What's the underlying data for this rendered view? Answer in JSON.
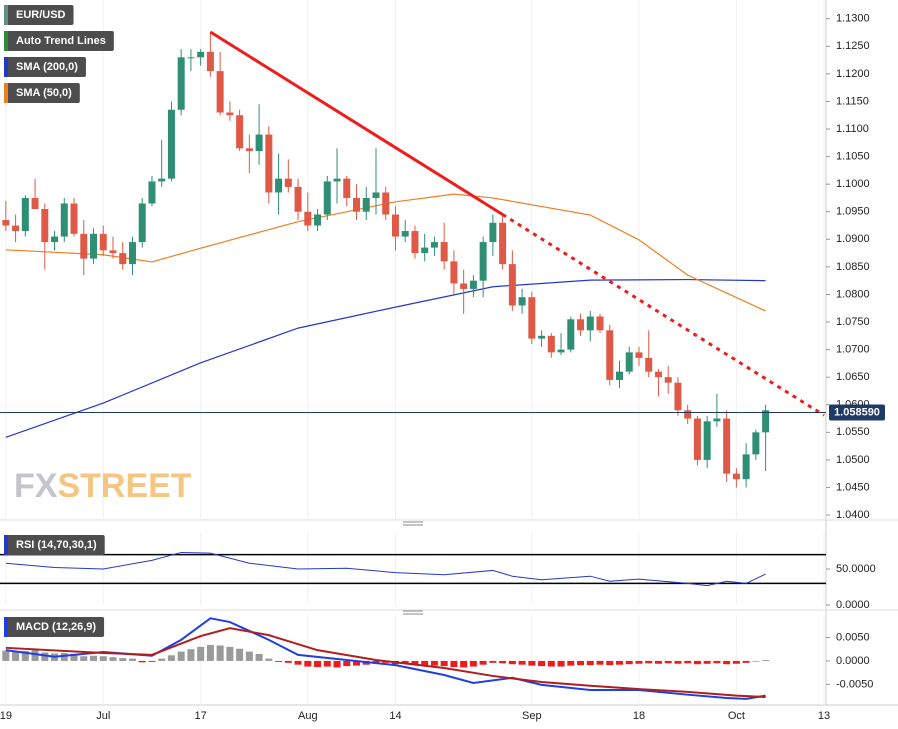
{
  "chart_data": [
    {
      "type": "candlestick",
      "symbol": "EUR/USD",
      "watermark_a": "FX",
      "watermark_b": "STREET",
      "up_color": "#2f8f74",
      "down_color": "#de5a47",
      "symbol_color": "#5f8f86",
      "x": [
        0,
        1,
        2,
        3,
        4,
        5,
        6,
        7,
        8,
        9,
        10,
        11,
        12,
        13,
        14,
        15,
        16,
        17,
        18,
        19,
        20,
        21,
        22,
        23,
        24,
        25,
        26,
        27,
        28,
        29,
        30,
        31,
        32,
        33,
        34,
        35,
        36,
        37,
        38,
        39,
        40,
        41,
        42,
        43,
        44,
        45,
        46,
        47,
        48,
        49,
        50,
        51,
        52,
        53,
        54,
        55,
        56,
        57,
        58,
        59,
        60,
        61,
        62,
        63,
        64,
        65,
        66,
        67,
        68,
        69,
        70,
        71,
        72,
        73,
        74,
        75,
        76,
        77,
        78
      ],
      "open": [
        1.0935,
        1.0925,
        1.0915,
        1.0975,
        1.0955,
        1.0895,
        1.0905,
        1.0965,
        1.091,
        1.0865,
        1.091,
        1.088,
        1.0875,
        1.0855,
        1.0895,
        1.0965,
        1.1005,
        1.101,
        1.1135,
        1.123,
        1.123,
        1.124,
        1.1205,
        1.113,
        1.1125,
        1.1065,
        1.106,
        1.109,
        1.0985,
        1.101,
        1.0995,
        1.095,
        1.0925,
        1.0945,
        1.1005,
        1.101,
        1.0975,
        1.095,
        1.0975,
        1.0985,
        1.0945,
        1.0905,
        1.0915,
        1.0875,
        1.0885,
        1.0895,
        1.086,
        1.082,
        1.081,
        1.0825,
        1.0895,
        1.093,
        1.0855,
        1.078,
        1.0795,
        1.072,
        1.0725,
        1.0695,
        1.07,
        1.0755,
        1.0735,
        1.076,
        1.0735,
        1.0645,
        1.066,
        1.0695,
        1.0685,
        1.066,
        1.065,
        1.064,
        1.059,
        1.0575,
        1.05,
        1.057,
        1.0575,
        1.0475,
        1.0465,
        1.051,
        1.055
      ],
      "high": [
        1.097,
        1.0945,
        1.098,
        1.101,
        1.0965,
        1.0915,
        1.0975,
        1.0975,
        1.0935,
        1.092,
        1.0925,
        1.0905,
        1.0895,
        1.0905,
        1.0975,
        1.1015,
        1.108,
        1.115,
        1.1245,
        1.1245,
        1.1245,
        1.1276,
        1.124,
        1.115,
        1.1135,
        1.109,
        1.1145,
        1.1105,
        1.1055,
        1.1045,
        1.101,
        1.0985,
        1.0955,
        1.1015,
        1.1065,
        1.1015,
        1.1,
        1.0995,
        1.1065,
        1.0995,
        1.096,
        1.0935,
        1.0925,
        1.091,
        1.0905,
        1.093,
        1.088,
        1.0845,
        1.0835,
        1.0905,
        1.0945,
        1.0945,
        1.088,
        1.081,
        1.0805,
        1.0735,
        1.073,
        1.073,
        1.076,
        1.0765,
        1.077,
        1.0765,
        1.0745,
        1.068,
        1.0705,
        1.0705,
        1.0735,
        1.0665,
        1.067,
        1.065,
        1.06,
        1.058,
        1.058,
        1.062,
        1.059,
        1.0485,
        1.053,
        1.0555,
        1.06
      ],
      "low": [
        1.0915,
        1.0895,
        1.0905,
        1.0955,
        1.0845,
        1.088,
        1.0895,
        1.0905,
        1.0835,
        1.0855,
        1.087,
        1.0865,
        1.0845,
        1.0835,
        1.0885,
        1.096,
        1.0995,
        1.1005,
        1.1125,
        1.1205,
        1.1215,
        1.1195,
        1.1125,
        1.1115,
        1.106,
        1.102,
        1.1035,
        1.0965,
        1.0945,
        1.0985,
        1.0935,
        1.0915,
        1.0915,
        1.0935,
        1.0965,
        1.096,
        1.0935,
        1.0935,
        1.0945,
        1.0935,
        1.088,
        1.0895,
        1.0865,
        1.086,
        1.087,
        1.0845,
        1.08,
        1.0765,
        1.0795,
        1.0795,
        1.087,
        1.0845,
        1.077,
        1.0765,
        1.071,
        1.0705,
        1.0685,
        1.069,
        1.0695,
        1.0725,
        1.0715,
        1.073,
        1.0635,
        1.063,
        1.0655,
        1.067,
        1.065,
        1.0615,
        1.062,
        1.058,
        1.0565,
        1.049,
        1.0485,
        1.056,
        1.046,
        1.045,
        1.045,
        1.05,
        1.048
      ],
      "close": [
        1.0925,
        1.0915,
        1.0975,
        1.0955,
        1.0895,
        1.0905,
        1.0965,
        1.091,
        1.0865,
        1.091,
        1.088,
        1.0875,
        1.0855,
        1.0895,
        1.0965,
        1.1005,
        1.101,
        1.1135,
        1.123,
        1.123,
        1.124,
        1.1205,
        1.113,
        1.1125,
        1.1065,
        1.106,
        1.109,
        1.0985,
        1.101,
        1.0995,
        1.095,
        1.0925,
        1.0945,
        1.1005,
        1.101,
        1.0975,
        1.095,
        1.0975,
        1.0985,
        1.0945,
        1.0905,
        1.0915,
        1.0875,
        1.0885,
        1.0895,
        1.086,
        1.082,
        1.081,
        1.0825,
        1.0895,
        1.093,
        1.0855,
        1.078,
        1.0795,
        1.072,
        1.0725,
        1.0695,
        1.07,
        1.0755,
        1.0735,
        1.076,
        1.0735,
        1.0645,
        1.066,
        1.0695,
        1.0685,
        1.066,
        1.065,
        1.064,
        1.059,
        1.0575,
        1.05,
        1.057,
        1.0575,
        1.0475,
        1.0465,
        1.051,
        1.055,
        1.059
      ],
      "series": [
        {
          "name": "SMA (200,0)",
          "color": "#2438c8",
          "x": [
            0,
            10,
            20,
            30,
            40,
            50,
            60,
            70,
            78
          ],
          "values": [
            1.0541,
            1.0603,
            1.0676,
            1.0739,
            1.0777,
            1.0814,
            1.0826,
            1.0827,
            1.0825
          ]
        },
        {
          "name": "SMA (50,0)",
          "color": "#f07f22",
          "x": [
            0,
            10,
            15,
            20,
            30,
            40,
            46,
            50,
            60,
            65,
            70,
            78
          ],
          "values": [
            1.0881,
            1.0872,
            1.0859,
            1.0884,
            1.0932,
            1.0968,
            1.0982,
            1.0975,
            1.0944,
            1.0899,
            1.0835,
            1.077
          ]
        }
      ],
      "trend_line": {
        "name": "Auto Trend Lines",
        "color": "#ee1c1c",
        "legend_color": "#2e8b3a",
        "x": [
          21,
          51,
          84
        ],
        "values": [
          1.1276,
          1.0945,
          1.0581
        ]
      },
      "current_price": 1.05859,
      "current_price_label": "1.058590",
      "current_price_color": "#1f3a66",
      "xlim": [
        -0.6,
        84.2
      ],
      "xticks": [
        {
          "value": 0,
          "label": "19"
        },
        {
          "value": 10,
          "label": "Jul"
        },
        {
          "value": 20,
          "label": "17"
        },
        {
          "value": 31,
          "label": "Aug"
        },
        {
          "value": 40,
          "label": "14"
        },
        {
          "value": 54,
          "label": "Sep"
        },
        {
          "value": 65,
          "label": "18"
        },
        {
          "value": 75,
          "label": "Oct"
        },
        {
          "value": 84,
          "label": "13"
        }
      ],
      "ylim": [
        1.0391,
        1.1334
      ],
      "yticks": [
        {
          "value": 1.13,
          "label": "1.1300"
        },
        {
          "value": 1.125,
          "label": "1.1250"
        },
        {
          "value": 1.12,
          "label": "1.1200"
        },
        {
          "value": 1.115,
          "label": "1.1150"
        },
        {
          "value": 1.11,
          "label": "1.1100"
        },
        {
          "value": 1.105,
          "label": "1.1050"
        },
        {
          "value": 1.1,
          "label": "1.1000"
        },
        {
          "value": 1.095,
          "label": "1.0950"
        },
        {
          "value": 1.09,
          "label": "1.0900"
        },
        {
          "value": 1.085,
          "label": "1.0850"
        },
        {
          "value": 1.08,
          "label": "1.0800"
        },
        {
          "value": 1.075,
          "label": "1.0750"
        },
        {
          "value": 1.07,
          "label": "1.0700"
        },
        {
          "value": 1.065,
          "label": "1.0650"
        },
        {
          "value": 1.06,
          "label": "1.0600"
        },
        {
          "value": 1.055,
          "label": "1.0550"
        },
        {
          "value": 1.05,
          "label": "1.0500"
        },
        {
          "value": 1.045,
          "label": "1.0450"
        },
        {
          "value": 1.04,
          "label": "1.0400"
        }
      ]
    },
    {
      "type": "line",
      "title": "RSI (14,70,30,1)",
      "series": [
        {
          "color": "#2438c8",
          "x": [
            0,
            5,
            10,
            15,
            18,
            21,
            25,
            30,
            35,
            40,
            45,
            50,
            52,
            55,
            60,
            62,
            65,
            70,
            72,
            74,
            76,
            78
          ],
          "values": [
            58,
            52,
            50,
            62,
            73,
            72,
            58,
            50,
            51,
            45,
            42,
            48,
            40,
            35,
            40,
            33,
            36,
            30,
            27,
            33,
            30,
            43
          ]
        }
      ],
      "levels": [
        70,
        30
      ],
      "ylim": [
        0,
        100
      ],
      "yticks": [
        {
          "value": 50,
          "label": "50.0000"
        },
        {
          "value": 0,
          "label": "0.0000"
        }
      ]
    },
    {
      "type": "line",
      "title": "MACD (12,26,9)",
      "series": [
        {
          "color": "#1f3fe0",
          "x": [
            0,
            5,
            10,
            15,
            18,
            21,
            23,
            27,
            30,
            35,
            40,
            45,
            48,
            52,
            55,
            60,
            65,
            70,
            74,
            76,
            78
          ],
          "values": [
            0.0023,
            0.0009,
            0.0019,
            0.0011,
            0.0045,
            0.0091,
            0.0083,
            0.0045,
            0.0013,
            0.0002,
            -0.0009,
            -0.003,
            -0.0047,
            -0.0036,
            -0.0051,
            -0.0062,
            -0.0062,
            -0.0072,
            -0.0079,
            -0.0081,
            -0.0074
          ]
        },
        {
          "color": "#b01e1e",
          "x": [
            0,
            10,
            15,
            20,
            23,
            27,
            32,
            38,
            45,
            50,
            55,
            60,
            65,
            70,
            75,
            78
          ],
          "values": [
            0.0028,
            0.0017,
            0.0013,
            0.0053,
            0.007,
            0.0055,
            0.0023,
            0.0002,
            -0.0015,
            -0.0032,
            -0.0045,
            -0.0053,
            -0.006,
            -0.0066,
            -0.0074,
            -0.0077
          ]
        }
      ],
      "histogram": {
        "pos_color": "#9a9a9a",
        "neg_color": "#f01c1c",
        "values": [
          0.0022,
          0.002,
          0.0021,
          0.0024,
          0.0018,
          0.0016,
          0.0017,
          0.0015,
          0.001,
          0.0011,
          0.001,
          0.0008,
          0.0006,
          0.0005,
          -0.0003,
          -0.0002,
          0.0005,
          0.0012,
          0.002,
          0.0025,
          0.003,
          0.0034,
          0.0033,
          0.003,
          0.0026,
          0.002,
          0.0015,
          0.0005,
          -0.0002,
          -0.0004,
          -0.0008,
          -0.0012,
          -0.0013,
          -0.0012,
          -0.0014,
          -0.0011,
          -0.001,
          -0.0008,
          -0.0006,
          -0.0004,
          -0.0007,
          -0.0006,
          -0.0008,
          -0.0009,
          -0.001,
          -0.0011,
          -0.0013,
          -0.0014,
          -0.0012,
          -0.0008,
          -0.0004,
          -0.0005,
          -0.0007,
          -0.0008,
          -0.001,
          -0.0011,
          -0.0012,
          -0.0012,
          -0.001,
          -0.0009,
          -0.0009,
          -0.0008,
          -0.0009,
          -0.0008,
          -0.0007,
          -0.0006,
          -0.0005,
          -0.0006,
          -0.0005,
          -0.0006,
          -0.0005,
          -0.0007,
          -0.0006,
          -0.0005,
          -0.0007,
          -0.0006,
          -0.0004,
          -0.0001,
          0.0002
        ]
      },
      "ylim": [
        -0.0094,
        0.0098
      ],
      "yticks": [
        {
          "value": 0.005,
          "label": "0.0050"
        },
        {
          "value": 0,
          "label": "0.0000"
        },
        {
          "value": -0.005,
          "label": "-0.0050"
        }
      ]
    }
  ]
}
